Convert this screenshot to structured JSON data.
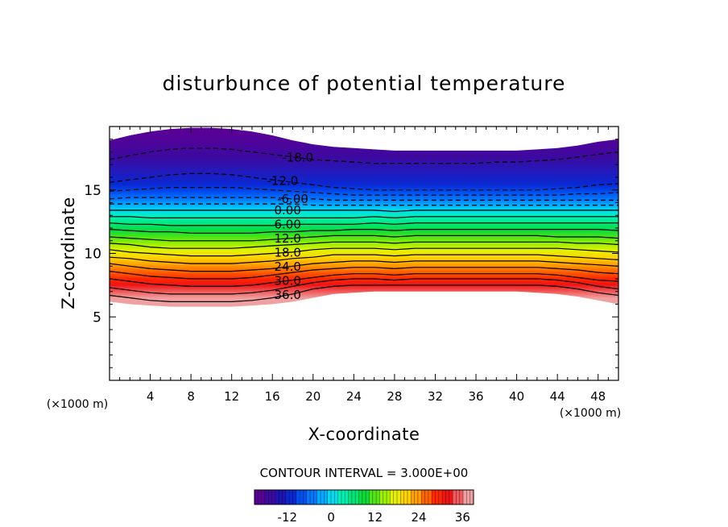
{
  "chart_data": {
    "type": "heatmap",
    "title": "disturbunce of potential temperature",
    "xlabel": "X-coordinate",
    "ylabel": "Z-coordinate",
    "x_unit": "(×1000 m)",
    "y_unit": "(×1000 m)",
    "xlim": [
      0,
      50
    ],
    "ylim": [
      0,
      20
    ],
    "x_ticks": [
      4,
      8,
      12,
      16,
      20,
      24,
      28,
      32,
      36,
      40,
      44,
      48
    ],
    "y_ticks": [
      5,
      10,
      15
    ],
    "field_bounds": {
      "x": [
        0,
        2,
        4,
        6,
        8,
        10,
        12,
        14,
        16,
        18,
        20,
        22,
        24,
        26,
        28,
        30,
        32,
        34,
        36,
        38,
        40,
        42,
        44,
        46,
        48,
        50
      ],
      "top_z": [
        18.9,
        19.3,
        19.6,
        19.8,
        19.9,
        19.9,
        19.8,
        19.6,
        19.3,
        18.9,
        18.6,
        18.4,
        18.3,
        18.2,
        18.1,
        18.1,
        18.1,
        18.1,
        18.1,
        18.1,
        18.1,
        18.2,
        18.3,
        18.5,
        18.8,
        19.0
      ],
      "bottom_z": [
        6.2,
        6.0,
        5.9,
        5.8,
        5.8,
        5.8,
        5.8,
        5.9,
        6.0,
        6.2,
        6.5,
        6.8,
        6.9,
        7.0,
        7.0,
        7.0,
        7.0,
        7.0,
        7.0,
        7.0,
        7.0,
        6.9,
        6.8,
        6.6,
        6.3,
        6.0
      ]
    },
    "contours": [
      {
        "value": -18.0,
        "label": "-18.0",
        "label_x": 18.5,
        "z": [
          17.4,
          17.7,
          18.0,
          18.2,
          18.3,
          18.3,
          18.2,
          18.0,
          17.8,
          17.6,
          17.4,
          17.3,
          17.2,
          17.1,
          17.1,
          17.1,
          17.1,
          17.1,
          17.1,
          17.2,
          17.2,
          17.3,
          17.4,
          17.6,
          17.8,
          18.0
        ]
      },
      {
        "value": -12.0,
        "label": "-12.0",
        "label_x": 17.0,
        "z": [
          15.6,
          15.8,
          16.0,
          16.2,
          16.3,
          16.3,
          16.2,
          16.0,
          15.8,
          15.6,
          15.4,
          15.2,
          15.1,
          15.0,
          15.0,
          15.0,
          15.0,
          15.0,
          15.0,
          15.0,
          15.0,
          15.0,
          15.1,
          15.2,
          15.4,
          15.5
        ]
      },
      {
        "value": -9.0,
        "label": "",
        "label_x": null,
        "z": [
          14.9,
          15.0,
          15.1,
          15.2,
          15.2,
          15.2,
          15.2,
          15.1,
          15.0,
          14.9,
          14.8,
          14.7,
          14.6,
          14.6,
          14.6,
          14.6,
          14.6,
          14.6,
          14.6,
          14.6,
          14.6,
          14.6,
          14.6,
          14.7,
          14.7,
          14.8
        ]
      },
      {
        "value": -6.0,
        "label": "-6.00",
        "label_x": 18.0,
        "z": [
          14.3,
          14.4,
          14.4,
          14.4,
          14.4,
          14.4,
          14.4,
          14.4,
          14.4,
          14.3,
          14.3,
          14.2,
          14.2,
          14.2,
          14.2,
          14.2,
          14.2,
          14.2,
          14.2,
          14.2,
          14.2,
          14.2,
          14.2,
          14.2,
          14.2,
          14.2
        ]
      },
      {
        "value": -3.0,
        "label": "",
        "label_x": null,
        "z": [
          13.9,
          13.9,
          13.9,
          13.9,
          13.9,
          13.9,
          13.9,
          13.9,
          13.9,
          13.9,
          13.8,
          13.8,
          13.8,
          13.8,
          13.8,
          13.8,
          13.8,
          13.8,
          13.8,
          13.8,
          13.8,
          13.8,
          13.8,
          13.8,
          13.8,
          13.8
        ]
      },
      {
        "value": 0.0,
        "label": "0.00",
        "label_x": 17.5,
        "z": [
          13.4,
          13.4,
          13.4,
          13.4,
          13.4,
          13.4,
          13.4,
          13.4,
          13.4,
          13.4,
          13.4,
          13.4,
          13.4,
          13.4,
          13.3,
          13.4,
          13.4,
          13.4,
          13.4,
          13.4,
          13.4,
          13.4,
          13.4,
          13.4,
          13.4,
          13.4
        ]
      },
      {
        "value": 3.0,
        "label": "",
        "label_x": null,
        "z": [
          12.9,
          12.9,
          12.8,
          12.8,
          12.8,
          12.8,
          12.8,
          12.8,
          12.8,
          12.8,
          12.8,
          12.8,
          12.8,
          12.9,
          12.8,
          12.9,
          12.9,
          12.9,
          12.9,
          12.9,
          12.9,
          12.9,
          12.9,
          12.9,
          12.9,
          12.9
        ]
      },
      {
        "value": 6.0,
        "label": "6.00",
        "label_x": 17.5,
        "z": [
          12.4,
          12.3,
          12.3,
          12.2,
          12.2,
          12.2,
          12.2,
          12.2,
          12.2,
          12.3,
          12.3,
          12.3,
          12.3,
          12.4,
          12.3,
          12.4,
          12.4,
          12.4,
          12.4,
          12.4,
          12.4,
          12.4,
          12.4,
          12.4,
          12.4,
          12.4
        ]
      },
      {
        "value": 9.0,
        "label": "",
        "label_x": null,
        "z": [
          11.9,
          11.8,
          11.7,
          11.7,
          11.6,
          11.6,
          11.6,
          11.6,
          11.7,
          11.7,
          11.8,
          11.8,
          11.9,
          11.9,
          11.8,
          11.9,
          11.9,
          11.9,
          11.9,
          11.9,
          11.9,
          11.9,
          11.9,
          11.9,
          11.9,
          11.8
        ]
      },
      {
        "value": 12.0,
        "label": "12.0",
        "label_x": 17.5,
        "z": [
          11.3,
          11.2,
          11.1,
          11.0,
          11.0,
          11.0,
          11.0,
          11.0,
          11.1,
          11.2,
          11.3,
          11.4,
          11.4,
          11.4,
          11.3,
          11.4,
          11.4,
          11.4,
          11.4,
          11.4,
          11.4,
          11.4,
          11.3,
          11.3,
          11.3,
          11.2
        ]
      },
      {
        "value": 15.0,
        "label": "",
        "label_x": null,
        "z": [
          10.8,
          10.7,
          10.5,
          10.4,
          10.4,
          10.4,
          10.4,
          10.5,
          10.6,
          10.7,
          10.8,
          10.9,
          10.9,
          10.9,
          10.8,
          10.9,
          10.9,
          10.9,
          10.9,
          10.9,
          10.9,
          10.9,
          10.9,
          10.8,
          10.8,
          10.7
        ]
      },
      {
        "value": 18.0,
        "label": "18.0",
        "label_x": 17.5,
        "z": [
          10.3,
          10.1,
          10.0,
          9.9,
          9.8,
          9.8,
          9.8,
          9.9,
          10.0,
          10.1,
          10.3,
          10.4,
          10.4,
          10.4,
          10.3,
          10.4,
          10.4,
          10.4,
          10.4,
          10.4,
          10.4,
          10.4,
          10.4,
          10.3,
          10.2,
          10.1
        ]
      },
      {
        "value": 21.0,
        "label": "",
        "label_x": null,
        "z": [
          9.7,
          9.6,
          9.4,
          9.3,
          9.2,
          9.2,
          9.2,
          9.3,
          9.4,
          9.6,
          9.7,
          9.9,
          9.9,
          9.9,
          9.8,
          9.9,
          9.9,
          9.9,
          9.9,
          9.9,
          9.9,
          9.9,
          9.8,
          9.7,
          9.6,
          9.5
        ]
      },
      {
        "value": 24.0,
        "label": "24.0",
        "label_x": 17.5,
        "z": [
          9.2,
          9.0,
          8.8,
          8.7,
          8.6,
          8.6,
          8.6,
          8.7,
          8.8,
          9.0,
          9.2,
          9.3,
          9.4,
          9.4,
          9.3,
          9.4,
          9.4,
          9.4,
          9.4,
          9.4,
          9.4,
          9.4,
          9.3,
          9.2,
          9.1,
          9.0
        ]
      },
      {
        "value": 27.0,
        "label": "",
        "label_x": null,
        "z": [
          8.6,
          8.4,
          8.2,
          8.1,
          8.0,
          8.0,
          8.0,
          8.1,
          8.3,
          8.5,
          8.7,
          8.8,
          8.9,
          8.9,
          8.8,
          8.9,
          8.9,
          8.9,
          8.9,
          8.9,
          8.9,
          8.9,
          8.8,
          8.7,
          8.5,
          8.4
        ]
      },
      {
        "value": 30.0,
        "label": "30.0",
        "label_x": 17.5,
        "z": [
          8.0,
          7.8,
          7.6,
          7.5,
          7.4,
          7.4,
          7.4,
          7.5,
          7.7,
          7.9,
          8.1,
          8.3,
          8.4,
          8.4,
          8.3,
          8.4,
          8.4,
          8.4,
          8.4,
          8.4,
          8.4,
          8.4,
          8.3,
          8.1,
          7.9,
          7.8
        ]
      },
      {
        "value": 33.0,
        "label": "",
        "label_x": null,
        "z": [
          7.3,
          7.1,
          6.9,
          6.8,
          6.8,
          6.8,
          6.8,
          6.9,
          7.1,
          7.4,
          7.7,
          7.9,
          8.0,
          8.0,
          7.9,
          8.0,
          8.0,
          8.0,
          8.0,
          8.0,
          8.0,
          8.0,
          7.9,
          7.7,
          7.4,
          7.2
        ]
      },
      {
        "value": 36.0,
        "label": "36.0",
        "label_x": 17.5,
        "z": [
          6.7,
          6.5,
          6.3,
          6.2,
          6.2,
          6.2,
          6.2,
          6.3,
          6.5,
          6.8,
          7.2,
          7.4,
          7.5,
          7.5,
          7.5,
          7.5,
          7.5,
          7.5,
          7.5,
          7.5,
          7.5,
          7.5,
          7.4,
          7.2,
          6.9,
          6.7
        ]
      }
    ],
    "colorbar": {
      "min": -21,
      "max": 39,
      "step": 1.5,
      "ticks": [
        -12,
        0,
        12,
        24,
        36
      ],
      "tick_labels": [
        "-12",
        "0",
        "12",
        "24",
        "36"
      ],
      "colors": [
        "#5a0096",
        "#3c0aa0",
        "#1e14b4",
        "#0a28d2",
        "#0050f0",
        "#0078ff",
        "#00aaff",
        "#00dcf0",
        "#00f0b4",
        "#00e678",
        "#0adc3c",
        "#50e614",
        "#a0f000",
        "#e6f000",
        "#ffd200",
        "#ffa000",
        "#ff6400",
        "#ff2800",
        "#f01414",
        "#f05a5a",
        "#f0a0a0"
      ]
    },
    "contour_interval_text": "CONTOUR INTERVAL = 3.000E+00"
  }
}
